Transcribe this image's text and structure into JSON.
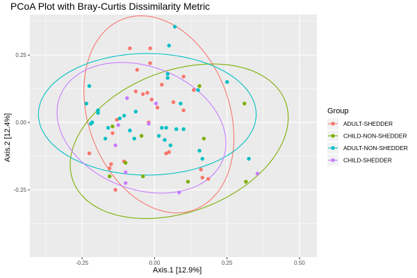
{
  "chart_data": {
    "type": "scatter",
    "title": "PCoA Plot with Bray-Curtis Dissimilarity Metric",
    "xlabel": "Axis.1   [12.9%]",
    "ylabel": "Axis.2   [12.4%]",
    "xlim": [
      -0.43,
      0.56
    ],
    "ylim": [
      -0.5,
      0.4
    ],
    "xticks": [
      -0.25,
      0.0,
      0.25,
      0.5
    ],
    "xtick_labels": [
      "-0.25",
      "0.00",
      "0.25",
      "0.50"
    ],
    "yticks": [
      -0.25,
      0.0,
      0.25
    ],
    "ytick_labels": [
      "-0.25",
      "0.00",
      "0.25"
    ],
    "grid": true,
    "legend": {
      "title": "Group",
      "position": "right",
      "entries": [
        "ADULT-SHEDDER",
        "CHILD-NON-SHEDDER",
        "ADULT-NON-SHEDDER",
        "CHILD-SHEDDER"
      ]
    },
    "ellipses": true,
    "series": [
      {
        "name": "ADULT-SHEDDER",
        "color": "#F8766D",
        "ellipse": {
          "cx": 0.015,
          "cy": 0.03,
          "rx": 0.245,
          "ry": 0.375,
          "angle_deg": 17
        },
        "points": [
          [
            -0.085,
            0.275
          ],
          [
            -0.015,
            0.275
          ],
          [
            -0.015,
            0.22
          ],
          [
            -0.06,
            0.195
          ],
          [
            0.025,
            0.14
          ],
          [
            0.1,
            0.17
          ],
          [
            0.135,
            0.12
          ],
          [
            -0.065,
            0.115
          ],
          [
            -0.04,
            0.105
          ],
          [
            -0.025,
            0.11
          ],
          [
            -0.01,
            0.085
          ],
          [
            0.065,
            0.075
          ],
          [
            0.01,
            0.055
          ],
          [
            0.1,
            0.045
          ],
          [
            -0.13,
            0.01
          ],
          [
            -0.02,
            0.0
          ],
          [
            -0.145,
            -0.04
          ],
          [
            -0.225,
            -0.115
          ],
          [
            0.04,
            -0.115
          ],
          [
            0.05,
            -0.11
          ],
          [
            -0.15,
            -0.155
          ],
          [
            -0.105,
            -0.145
          ],
          [
            -0.155,
            -0.17
          ],
          [
            0.16,
            -0.175
          ],
          [
            0.165,
            -0.205
          ],
          [
            0.185,
            -0.21
          ],
          [
            -0.135,
            -0.25
          ]
        ]
      },
      {
        "name": "CHILD-NON-SHEDDER",
        "color": "#7CAE00",
        "ellipse": {
          "cx": 0.085,
          "cy": -0.07,
          "rx": 0.395,
          "ry": 0.26,
          "angle_deg": 24
        },
        "points": [
          [
            0.155,
            0.135
          ],
          [
            0.31,
            0.07
          ],
          [
            -0.145,
            -0.015
          ],
          [
            -0.045,
            -0.05
          ],
          [
            0.17,
            -0.06
          ],
          [
            -0.1,
            -0.15
          ],
          [
            -0.155,
            -0.2
          ],
          [
            -0.04,
            -0.2
          ],
          [
            0.115,
            -0.22
          ],
          [
            0.315,
            -0.22
          ]
        ]
      },
      {
        "name": "ADULT-NON-SHEDDER",
        "color": "#00BFC4",
        "ellipse": {
          "cx": -0.025,
          "cy": 0.03,
          "rx": 0.3755,
          "ry": 0.2255,
          "angle_deg": 0
        },
        "points": [
          [
            0.07,
            0.355
          ],
          [
            0.05,
            0.285
          ],
          [
            -0.225,
            0.135
          ],
          [
            0.045,
            0.165
          ],
          [
            0.045,
            0.18
          ],
          [
            0.15,
            0.12
          ],
          [
            0.25,
            0.15
          ],
          [
            0.09,
            0.07
          ],
          [
            -0.235,
            0.07
          ],
          [
            -0.195,
            0.045
          ],
          [
            -0.195,
            0.035
          ],
          [
            -0.065,
            0.04
          ],
          [
            -0.105,
            0.025
          ],
          [
            -0.12,
            0.015
          ],
          [
            -0.215,
            0.0
          ],
          [
            -0.22,
            -0.005
          ],
          [
            -0.16,
            -0.02
          ],
          [
            0.025,
            -0.02
          ],
          [
            0.04,
            -0.02
          ],
          [
            0.075,
            -0.025
          ],
          [
            0.1,
            -0.025
          ],
          [
            -0.085,
            -0.03
          ],
          [
            0.015,
            -0.05
          ],
          [
            -0.07,
            -0.06
          ],
          [
            0.035,
            -0.065
          ],
          [
            -0.17,
            -0.06
          ],
          [
            0.055,
            -0.085
          ],
          [
            0.155,
            -0.105
          ],
          [
            0.325,
            -0.135
          ],
          [
            0.165,
            -0.135
          ]
        ]
      },
      {
        "name": "CHILD-SHEDDER",
        "color": "#C77CFF",
        "ellipse": {
          "cx": -0.045,
          "cy": -0.02,
          "rx": 0.305,
          "ry": 0.225,
          "angle_deg": -26
        },
        "points": [
          [
            -0.095,
            0.09
          ],
          [
            0.005,
            0.07
          ],
          [
            -0.125,
            -0.01
          ],
          [
            -0.02,
            -0.005
          ],
          [
            -0.135,
            -0.085
          ],
          [
            -0.1,
            -0.185
          ],
          [
            -0.1,
            -0.225
          ],
          [
            0.355,
            -0.19
          ],
          [
            0.085,
            -0.26
          ]
        ]
      }
    ]
  }
}
